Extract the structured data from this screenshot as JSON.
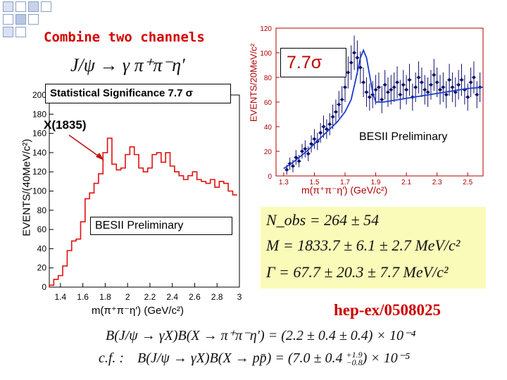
{
  "title": "Combine two channels",
  "decay": "J/ψ → γ π⁺π⁻η′",
  "significance_label": "Statistical Significance 7.7  σ",
  "peak_label": "X(1835)",
  "left_preliminary": "BESII Preliminary",
  "right_preliminary": "BESII Preliminary",
  "right_sigma": "7.7σ",
  "results_box": {
    "nobs": "N_obs = 264 ± 54",
    "mass": "M = 1833.7 ± 6.1 ± 2.7 MeV/c²",
    "width": "Γ = 67.7 ± 20.3 ± 7.7 MeV/c²"
  },
  "reference": "hep-ex/0508025",
  "bottom": {
    "line1": "B(J/ψ → γX)B(X → π⁺π⁻η′) = (2.2 ± 0.4 ± 0.4) × 10⁻⁴",
    "line2_prefix": "c.f. :",
    "line2": "B(J/ψ → γX)B(X → pp̄) = (7.0 ± 0.4",
    "line2_sup": "+1.9",
    "line2_sub": "−0.8",
    "line2_end": ") × 10⁻⁵"
  },
  "chart_data": [
    {
      "type": "bar",
      "xlabel": "m(π⁺π⁻η′)   (GeV/c²)",
      "ylabel": "EVENTS/(40MeV/c²)",
      "xlim": [
        1.3,
        3.0
      ],
      "ylim": [
        0,
        200
      ],
      "xticks": [
        1.4,
        1.6,
        1.8,
        2.0,
        2.2,
        2.4,
        2.6,
        2.8,
        3.0
      ],
      "xtick_labels": [
        "1.4",
        "1.6",
        "1.8",
        "2",
        "2.2",
        "2.4",
        "2.6",
        "2.8",
        "3"
      ],
      "yticks": [
        0,
        20,
        40,
        60,
        80,
        100,
        120,
        140,
        160,
        180,
        200
      ],
      "bin_edges": [
        1.3,
        1.34,
        1.38,
        1.42,
        1.46,
        1.5,
        1.54,
        1.58,
        1.62,
        1.66,
        1.7,
        1.74,
        1.78,
        1.82,
        1.86,
        1.9,
        1.94,
        1.98,
        2.02,
        2.06,
        2.1,
        2.14,
        2.18,
        2.22,
        2.26,
        2.3,
        2.34,
        2.38,
        2.42,
        2.46,
        2.5,
        2.54,
        2.58,
        2.62,
        2.66,
        2.7,
        2.74,
        2.78,
        2.82,
        2.86,
        2.9,
        2.94,
        2.98
      ],
      "values": [
        2,
        8,
        12,
        22,
        38,
        48,
        50,
        68,
        92,
        98,
        108,
        118,
        140,
        155,
        128,
        122,
        124,
        138,
        146,
        138,
        124,
        120,
        124,
        138,
        140,
        130,
        140,
        126,
        120,
        116,
        112,
        116,
        120,
        112,
        110,
        108,
        112,
        104,
        110,
        108,
        100,
        96
      ]
    },
    {
      "type": "scatter",
      "xlabel": "m(π⁺π⁻η′)   (GeV/c²)",
      "ylabel": "EVENTS/20MeV/c²",
      "xlim": [
        1.25,
        2.6
      ],
      "ylim": [
        0,
        120
      ],
      "xticks": [
        1.3,
        1.5,
        1.7,
        1.9,
        2.1,
        2.3,
        2.5
      ],
      "xtick_labels": [
        "1.3",
        "1.5",
        "1.7",
        "1.9",
        "2.1",
        "2.3",
        "2.5"
      ],
      "yticks": [
        0,
        20,
        40,
        60,
        80,
        100,
        120
      ],
      "series": [
        {
          "x": [
            1.32,
            1.34,
            1.36,
            1.38,
            1.4,
            1.42,
            1.44,
            1.46,
            1.48,
            1.5,
            1.52,
            1.54,
            1.56,
            1.58,
            1.6,
            1.62,
            1.64,
            1.66,
            1.68,
            1.7,
            1.72,
            1.74,
            1.76,
            1.78,
            1.8,
            1.82,
            1.84,
            1.86,
            1.88,
            1.9,
            1.92,
            1.94,
            1.96,
            1.98,
            2.0,
            2.02,
            2.04,
            2.06,
            2.08,
            2.1,
            2.12,
            2.14,
            2.16,
            2.18,
            2.2,
            2.22,
            2.24,
            2.26,
            2.28,
            2.3,
            2.32,
            2.34,
            2.36,
            2.38,
            2.4,
            2.42,
            2.44,
            2.46,
            2.48,
            2.5,
            2.52,
            2.54,
            2.56,
            2.58
          ],
          "y": [
            5,
            10,
            8,
            15,
            12,
            20,
            22,
            18,
            26,
            30,
            28,
            35,
            40,
            38,
            42,
            48,
            52,
            58,
            62,
            72,
            84,
            92,
            100,
            96,
            88,
            76,
            68,
            64,
            66,
            70,
            72,
            62,
            74,
            68,
            70,
            72,
            76,
            66,
            74,
            70,
            78,
            64,
            72,
            80,
            76,
            70,
            68,
            74,
            82,
            76,
            70,
            72,
            66,
            78,
            72,
            68,
            74,
            78,
            70,
            64,
            76,
            80,
            66,
            72
          ],
          "errors": [
            4,
            5,
            5,
            6,
            5,
            6,
            7,
            6,
            7,
            8,
            7,
            8,
            9,
            8,
            9,
            10,
            10,
            11,
            11,
            12,
            13,
            14,
            14,
            14,
            13,
            12,
            12,
            11,
            11,
            12,
            12,
            11,
            12,
            12,
            12,
            12,
            13,
            12,
            12,
            12,
            13,
            11,
            12,
            13,
            12,
            12,
            12,
            12,
            13,
            12,
            12,
            12,
            11,
            13,
            12,
            12,
            12,
            13,
            12,
            11,
            12,
            13,
            11,
            12
          ]
        },
        {
          "name": "",
          "fit_x": [
            1.3,
            1.35,
            1.4,
            1.45,
            1.5,
            1.55,
            1.6,
            1.65,
            1.7,
            1.74,
            1.78,
            1.8,
            1.82,
            1.84,
            1.86,
            1.88,
            1.9,
            1.95,
            2.0,
            2.1,
            2.2,
            2.3,
            2.4,
            2.5,
            2.6
          ],
          "fit_y": [
            6,
            10,
            15,
            20,
            26,
            32,
            38,
            44,
            52,
            62,
            84,
            96,
            102,
            96,
            82,
            68,
            60,
            60,
            61,
            63,
            65,
            67,
            69,
            71,
            72
          ]
        }
      ]
    }
  ]
}
